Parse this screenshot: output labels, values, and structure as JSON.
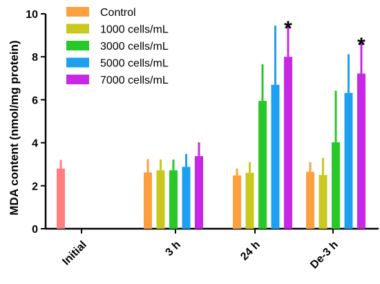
{
  "chart_data": {
    "type": "bar",
    "ylabel": "MDA content (nmol/mg protein)",
    "xlabel": "",
    "ylim": [
      0,
      10
    ],
    "yticks": [
      0,
      2,
      4,
      6,
      8,
      10
    ],
    "categories": [
      "Initial",
      "3 h",
      "24 h",
      "De-3 h"
    ],
    "legend_position": "top-left",
    "initial_bar": {
      "category": "Initial",
      "value": 2.8,
      "error": 0.4,
      "color": "#ff7f7f"
    },
    "series": [
      {
        "name": "Control",
        "color": "#ffa040",
        "values": [
          null,
          2.62,
          2.48,
          2.65
        ],
        "errors": [
          null,
          0.62,
          0.32,
          0.45
        ]
      },
      {
        "name": "1000 cells/mL",
        "color": "#c8c81e",
        "values": [
          null,
          2.72,
          2.6,
          2.5
        ],
        "errors": [
          null,
          0.5,
          0.5,
          0.8
        ]
      },
      {
        "name": "3000 cells/mL",
        "color": "#28c828",
        "values": [
          null,
          2.72,
          5.95,
          4.02
        ],
        "errors": [
          null,
          0.5,
          1.7,
          2.4
        ]
      },
      {
        "name": "5000 cells/mL",
        "color": "#1ea0f0",
        "values": [
          null,
          2.88,
          6.7,
          6.32
        ],
        "errors": [
          null,
          0.6,
          2.75,
          1.8
        ]
      },
      {
        "name": "7000 cells/mL",
        "color": "#c828e6",
        "values": [
          null,
          3.38,
          8.0,
          7.22
        ],
        "errors": [
          null,
          0.64,
          1.52,
          1.52
        ]
      }
    ],
    "annotations": [
      {
        "text": "*",
        "category": "24 h",
        "series": "7000 cells/mL"
      },
      {
        "text": "*",
        "category": "De-3 h",
        "series": "7000 cells/mL"
      }
    ]
  }
}
